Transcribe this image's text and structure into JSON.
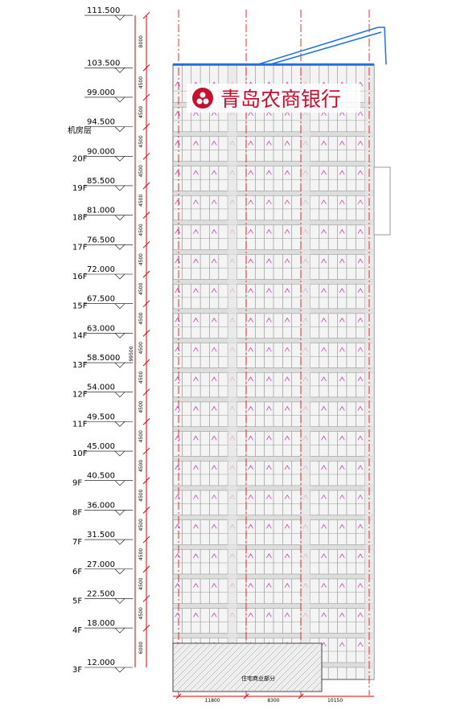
{
  "levels": [
    "111.500",
    "103.500",
    "99.000",
    "94.500",
    "90.000",
    "85.500",
    "81.000",
    "76.500",
    "72.000",
    "67.500",
    "63.000",
    "58.5000",
    "54.000",
    "49.500",
    "45.000",
    "40.500",
    "36.000",
    "31.500",
    "27.000",
    "22.500",
    "18.000",
    "12.000"
  ],
  "floors": [
    null,
    null,
    null,
    "机房层",
    "20F",
    "19F",
    "18F",
    "17F",
    "16F",
    "15F",
    "14F",
    "13F",
    "12F",
    "11F",
    "10F",
    "9F",
    "8F",
    "7F",
    "6F",
    "5F",
    "4F",
    "3F"
  ],
  "floor_dims": [
    "8000",
    "4500",
    "4500",
    "4500",
    "4500",
    "4500",
    "4500",
    "4500",
    "4500",
    "4500",
    "4500",
    "4500",
    "4500",
    "4500",
    "4500",
    "4500",
    "4500",
    "4500",
    "4500",
    "4500",
    "6000"
  ],
  "total_dim": "99500",
  "sign": "青岛农商银行",
  "bottom_dims": [
    "11800",
    "8300",
    "10150"
  ],
  "podium_label": "住宅商业部分"
}
